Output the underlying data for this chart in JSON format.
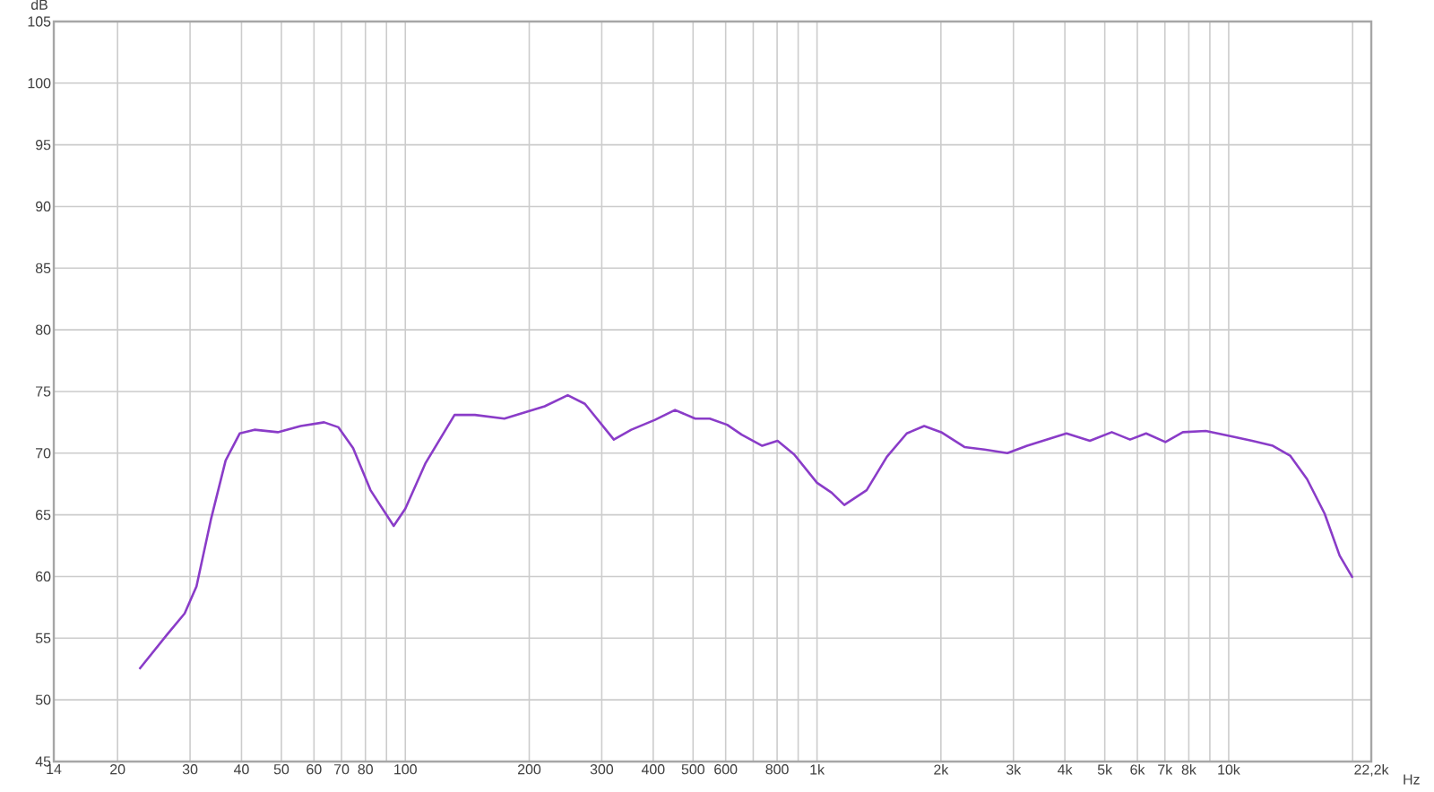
{
  "chart_data": {
    "type": "line",
    "xlabel": "Hz",
    "ylabel": "dB",
    "log": "x",
    "grid": true,
    "xlim": [
      14,
      22200
    ],
    "ylim": [
      45,
      105
    ],
    "xticks": [
      14,
      20,
      30,
      40,
      50,
      60,
      70,
      80,
      {
        "value": 90,
        "label": null
      },
      100,
      200,
      300,
      400,
      500,
      600,
      {
        "value": 700,
        "label": null
      },
      800,
      {
        "value": 900,
        "label": null
      },
      {
        "value": 1000,
        "label": "1k"
      },
      {
        "value": 2000,
        "label": "2k"
      },
      {
        "value": 3000,
        "label": "3k"
      },
      {
        "value": 4000,
        "label": "4k"
      },
      {
        "value": 5000,
        "label": "5k"
      },
      {
        "value": 6000,
        "label": "6k"
      },
      {
        "value": 7000,
        "label": "7k"
      },
      {
        "value": 8000,
        "label": "8k"
      },
      {
        "value": 9000,
        "label": null
      },
      {
        "value": 10000,
        "label": "10k"
      },
      {
        "value": 20000,
        "label": null
      },
      {
        "value": 22200,
        "label": "22,2k"
      }
    ],
    "yticks": [
      45,
      50,
      55,
      60,
      65,
      70,
      75,
      80,
      85,
      90,
      95,
      100,
      105
    ],
    "x": [
      22.6,
      26.4,
      29.1,
      31.1,
      33.7,
      36.6,
      39.6,
      43.0,
      49.0,
      55.7,
      63.5,
      68.8,
      74.7,
      82.3,
      93.7,
      100,
      112,
      131.7,
      147.6,
      174,
      218,
      248,
      273,
      321,
      354,
      404,
      452,
      506,
      549,
      605,
      656,
      736,
      802,
      880,
      1000,
      1085,
      1165,
      1320,
      1478,
      1652,
      1821,
      2003,
      2281,
      2550,
      2900,
      3240,
      4036,
      4600,
      5200,
      5760,
      6300,
      7020,
      7740,
      8800,
      10030,
      11400,
      12800,
      14100,
      15500,
      17100,
      18600,
      20000
    ],
    "series": [
      {
        "color": "#8a3cc8",
        "values": [
          52.5,
          55.3,
          57.0,
          59.2,
          64.6,
          69.4,
          71.6,
          71.9,
          71.7,
          72.2,
          72.5,
          72.1,
          70.4,
          67.0,
          64.1,
          65.5,
          69.2,
          73.1,
          73.1,
          72.8,
          73.8,
          74.7,
          74.0,
          71.1,
          71.9,
          72.7,
          73.5,
          72.8,
          72.8,
          72.3,
          71.5,
          70.6,
          71.0,
          69.9,
          67.6,
          66.8,
          65.8,
          67.0,
          69.7,
          71.6,
          72.2,
          71.7,
          70.5,
          70.3,
          70.0,
          70.6,
          71.6,
          71.0,
          71.7,
          71.1,
          71.6,
          70.9,
          71.7,
          71.8,
          71.4,
          71.0,
          70.6,
          69.8,
          67.9,
          65.1,
          61.7,
          59.9
        ]
      }
    ]
  }
}
